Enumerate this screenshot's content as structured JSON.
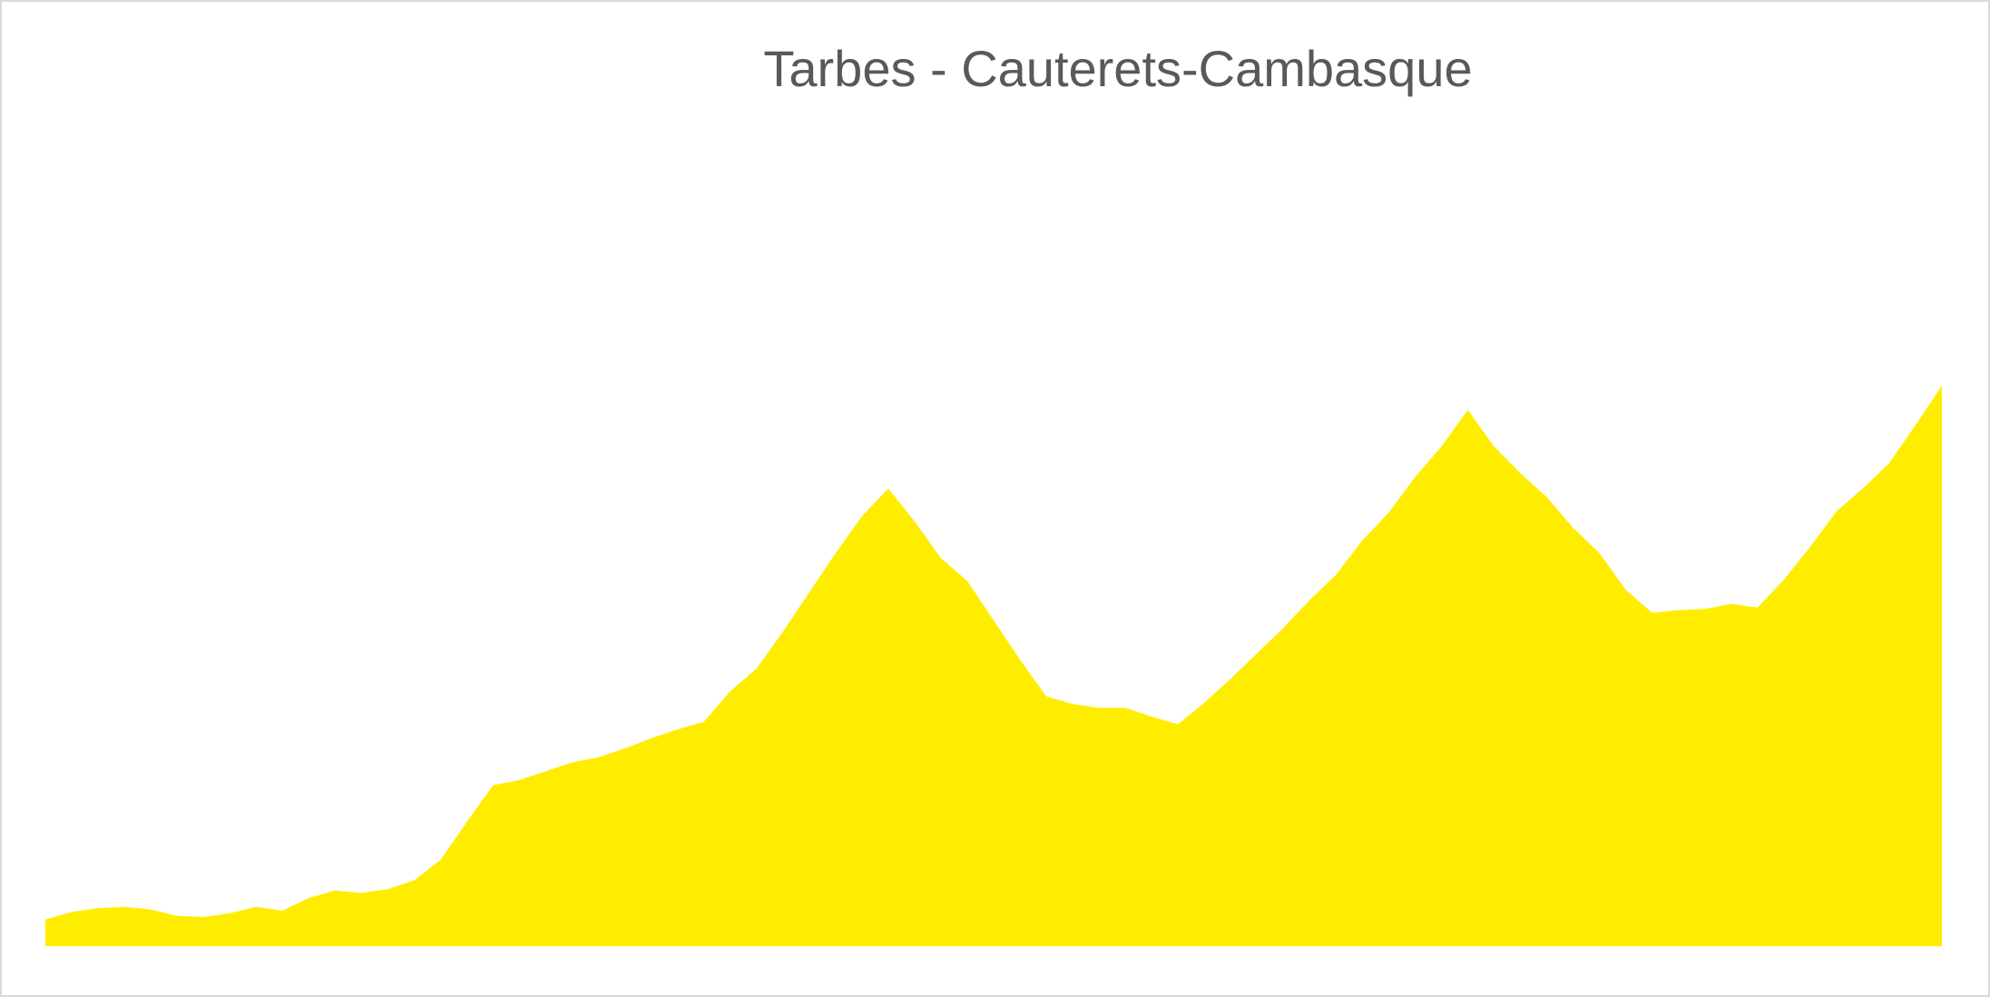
{
  "chart_data": {
    "type": "area",
    "title": "Tarbes - Cauterets-Cambasque",
    "categories": [
      null,
      null,
      null,
      null,
      null,
      null,
      null,
      null,
      null,
      null,
      null,
      null,
      null,
      null,
      null,
      null,
      null,
      null,
      null,
      null,
      null,
      null,
      null,
      null,
      null,
      null,
      null,
      null,
      null,
      null,
      null,
      null,
      null,
      null,
      null,
      null,
      null,
      null,
      null,
      null,
      null,
      null,
      null,
      null,
      null,
      null,
      null,
      null,
      null,
      null,
      null,
      null,
      null,
      null,
      null,
      null,
      null,
      null,
      null,
      null,
      null,
      null,
      null,
      null,
      null,
      null,
      null,
      null,
      null,
      null,
      null,
      null,
      null
    ],
    "values": [
      21,
      27,
      30,
      31,
      29,
      24,
      23,
      26,
      31,
      28,
      38,
      44,
      42,
      45,
      52,
      68,
      98,
      127,
      131,
      138,
      145,
      149,
      156,
      164,
      171,
      177,
      201,
      219,
      248,
      279,
      310,
      339,
      361,
      335,
      306,
      288,
      257,
      226,
      197,
      191,
      188,
      188,
      181,
      175,
      192,
      211,
      231,
      251,
      273,
      293,
      320,
      342,
      370,
      394,
      423,
      394,
      373,
      354,
      330,
      310,
      281,
      263,
      265,
      266,
      270,
      267,
      289,
      315,
      343,
      361,
      381,
      411,
      442
    ],
    "color": "#ffed00",
    "ylim": [
      0,
      450
    ]
  }
}
